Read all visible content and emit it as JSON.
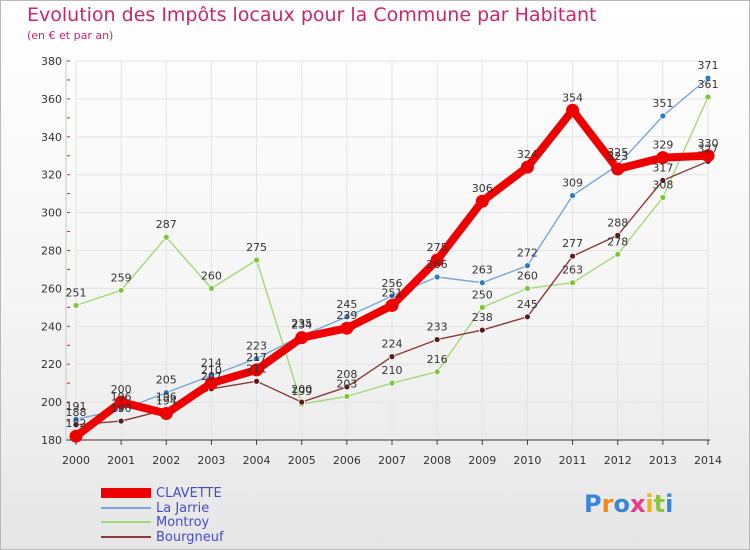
{
  "chart_data": {
    "type": "line",
    "title": "Evolution des Impôts locaux pour la Commune par Habitant",
    "subtitle": "(en € et par an)",
    "x": [
      "2000",
      "2001",
      "2002",
      "2003",
      "2004",
      "2005",
      "2006",
      "2007",
      "2008",
      "2009",
      "2010",
      "2011",
      "2012",
      "2013",
      "2014"
    ],
    "ylim": [
      180,
      380
    ],
    "yticks": [
      180,
      200,
      220,
      240,
      260,
      280,
      300,
      320,
      340,
      360,
      380
    ],
    "grid": true,
    "legend_position": "bottom-left",
    "series": [
      {
        "name": "La Jarrie",
        "color": "#7aa6d6",
        "marker": "#2e78c4",
        "values": [
          191,
          196,
          205,
          214,
          223,
          235,
          245,
          256,
          266,
          263,
          272,
          309,
          325,
          351,
          371
        ]
      },
      {
        "name": "Montroy",
        "color": "#a6d77a",
        "marker": "#7cc63a",
        "values": [
          251,
          259,
          287,
          260,
          275,
          199,
          203,
          210,
          216,
          250,
          260,
          263,
          278,
          308,
          361
        ]
      },
      {
        "name": "Bourgneuf",
        "color": "#8a3a3a",
        "marker": "#5a1a1a",
        "values": [
          188,
          190,
          196,
          207,
          211,
          200,
          208,
          224,
          233,
          238,
          245,
          277,
          288,
          317,
          327
        ]
      },
      {
        "name": "CLAVETTE",
        "color": "#ee0000",
        "marker": "#ee0000",
        "values": [
          182,
          200,
          194,
          210,
          217,
          234,
          239,
          251,
          275,
          306,
          324,
          354,
          323,
          329,
          330
        ]
      }
    ]
  },
  "logo": {
    "text": "Proxiti",
    "colors": [
      "#3b87d6",
      "#f08a1a",
      "#3b87d6",
      "#e83a8a",
      "#f0b21a",
      "#8cc63f",
      "#3b87d6"
    ]
  }
}
